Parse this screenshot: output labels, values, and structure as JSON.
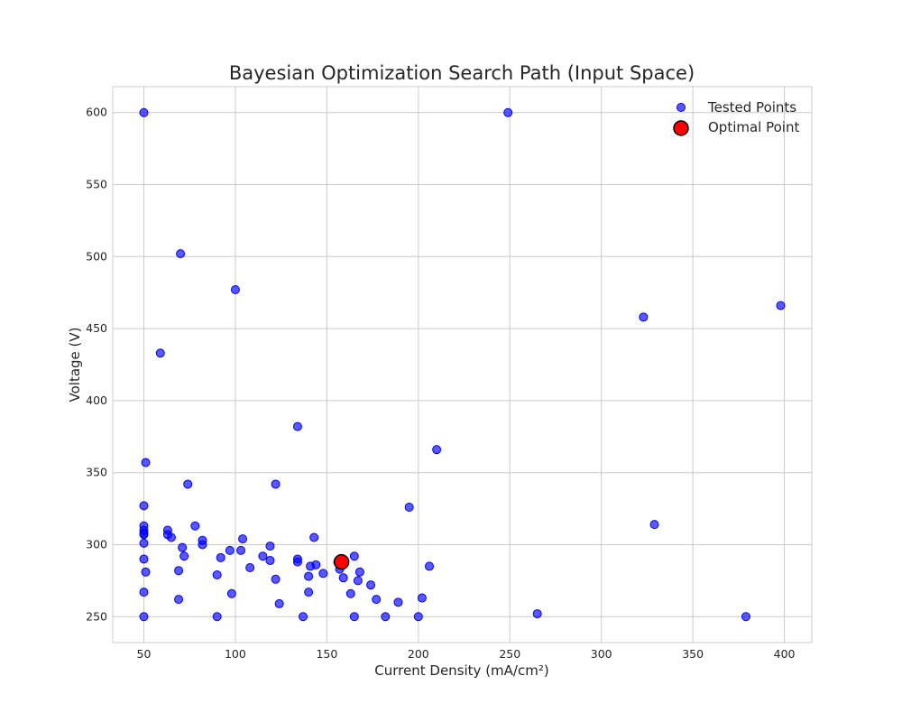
{
  "chart_data": {
    "type": "scatter",
    "title": "Bayesian Optimization Search Path (Input Space)",
    "xlabel": "Current Density (mA/cm²)",
    "ylabel": "Voltage (V)",
    "xlim": [
      33,
      415
    ],
    "ylim": [
      232,
      618
    ],
    "xticks": [
      50,
      100,
      150,
      200,
      250,
      300,
      350,
      400
    ],
    "yticks": [
      250,
      300,
      350,
      400,
      450,
      500,
      550,
      600
    ],
    "grid": true,
    "legend": "top-right",
    "series": [
      {
        "name": "Tested Points",
        "color": "#0000ff",
        "points": [
          [
            50,
            600
          ],
          [
            249,
            600
          ],
          [
            70,
            502
          ],
          [
            100,
            477
          ],
          [
            398,
            466
          ],
          [
            323,
            458
          ],
          [
            59,
            433
          ],
          [
            134,
            382
          ],
          [
            210,
            366
          ],
          [
            51,
            357
          ],
          [
            74,
            342
          ],
          [
            122,
            342
          ],
          [
            195,
            326
          ],
          [
            50,
            327
          ],
          [
            329,
            314
          ],
          [
            50,
            313
          ],
          [
            50,
            310
          ],
          [
            78,
            313
          ],
          [
            63,
            310
          ],
          [
            50,
            307
          ],
          [
            50,
            308
          ],
          [
            63,
            307
          ],
          [
            65,
            305
          ],
          [
            143,
            305
          ],
          [
            104,
            304
          ],
          [
            82,
            303
          ],
          [
            50,
            301
          ],
          [
            82,
            300
          ],
          [
            71,
            298
          ],
          [
            119,
            299
          ],
          [
            97,
            296
          ],
          [
            103,
            296
          ],
          [
            72,
            292
          ],
          [
            92,
            291
          ],
          [
            115,
            292
          ],
          [
            134,
            290
          ],
          [
            165,
            292
          ],
          [
            50,
            290
          ],
          [
            119,
            289
          ],
          [
            134,
            288
          ],
          [
            156,
            288
          ],
          [
            141,
            285
          ],
          [
            144,
            286
          ],
          [
            206,
            285
          ],
          [
            108,
            284
          ],
          [
            157,
            283
          ],
          [
            69,
            282
          ],
          [
            51,
            281
          ],
          [
            148,
            280
          ],
          [
            168,
            281
          ],
          [
            90,
            279
          ],
          [
            140,
            278
          ],
          [
            159,
            277
          ],
          [
            122,
            276
          ],
          [
            167,
            275
          ],
          [
            174,
            272
          ],
          [
            140,
            267
          ],
          [
            50,
            267
          ],
          [
            98,
            266
          ],
          [
            163,
            266
          ],
          [
            202,
            263
          ],
          [
            69,
            262
          ],
          [
            177,
            262
          ],
          [
            189,
            260
          ],
          [
            124,
            259
          ],
          [
            265,
            252
          ],
          [
            50,
            250
          ],
          [
            90,
            250
          ],
          [
            137,
            250
          ],
          [
            165,
            250
          ],
          [
            182,
            250
          ],
          [
            200,
            250
          ],
          [
            379,
            250
          ]
        ]
      },
      {
        "name": "Optimal Point",
        "color": "#ff0000",
        "points": [
          [
            158,
            288
          ]
        ]
      }
    ]
  }
}
